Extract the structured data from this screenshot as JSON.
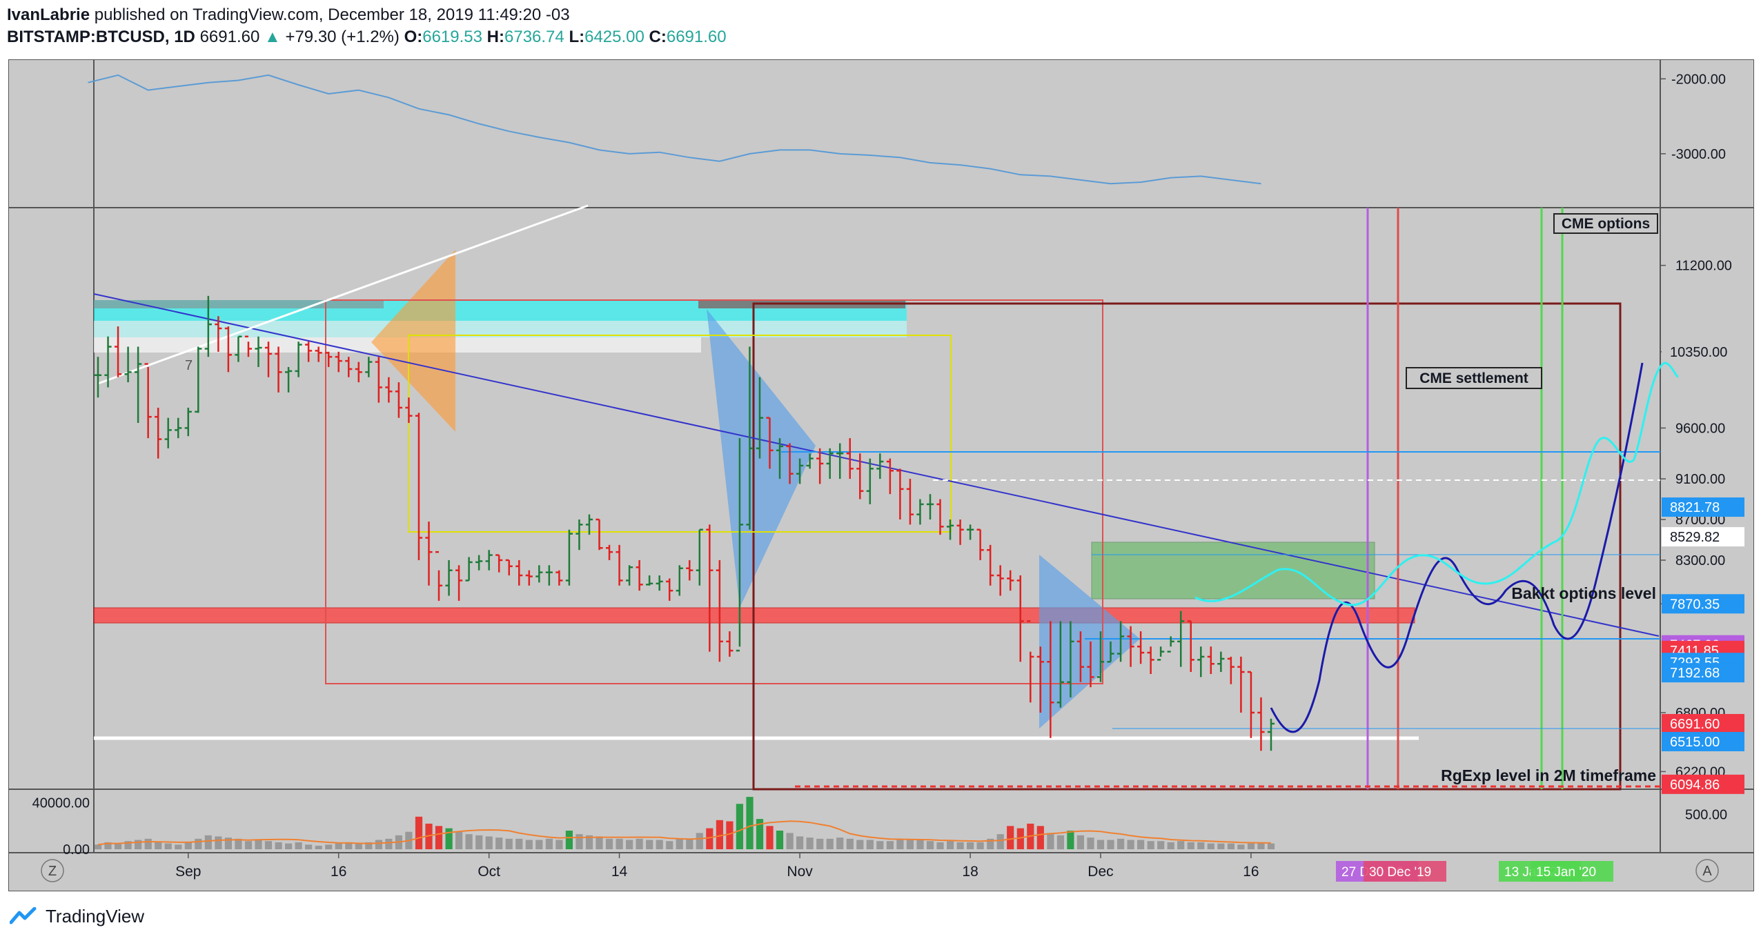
{
  "header": {
    "publisher": "IvanLabrie",
    "published_text": "published on TradingView.com, December 18, 2019 11:49:20 -03",
    "symbol": "BITSTAMP:BTCUSD, 1D",
    "last": "6691.60",
    "change_arrow": "▲",
    "change": "+79.30 (+1.2%)",
    "o_label": "O:",
    "o": "6619.53",
    "h_label": "H:",
    "h": "6736.74",
    "l_label": "L:",
    "l": "6425.00",
    "c_label": "C:",
    "c": "6691.60"
  },
  "footer": {
    "brand": "TradingView",
    "logo_icon": "tradingview-logo-icon"
  },
  "colors": {
    "bg": "#c9c9c9",
    "up": "#26a69a",
    "down": "#ef5350",
    "indicator_line": "#5b9bd5",
    "axis_text": "#131722",
    "blue_label": "#2196f3",
    "red_label": "#f23645"
  },
  "chart_data": [
    {
      "type": "line",
      "pane": "oscillator",
      "y_ticks": [
        "-2000.00",
        "-3000.00"
      ],
      "y_tick_values": [
        -2000,
        -3000
      ],
      "ylim": [
        -1850,
        -3600
      ],
      "x": [
        "Aug 22",
        "Aug 25",
        "Aug 28",
        "Aug 31",
        "Sep 3",
        "Sep 6",
        "Sep 9",
        "Sep 12",
        "Sep 15",
        "Sep 18",
        "Sep 21",
        "Sep 24",
        "Sep 27",
        "Sep 30",
        "Oct 3",
        "Oct 6",
        "Oct 9",
        "Oct 12",
        "Oct 15",
        "Oct 18",
        "Oct 21",
        "Oct 24",
        "Oct 27",
        "Oct 30",
        "Nov 2",
        "Nov 5",
        "Nov 8",
        "Nov 11",
        "Nov 14",
        "Nov 17",
        "Nov 20",
        "Nov 23",
        "Nov 26",
        "Nov 29",
        "Dec 2",
        "Dec 5",
        "Dec 8",
        "Dec 11",
        "Dec 14",
        "Dec 17"
      ],
      "values": [
        -2050,
        -1950,
        -2150,
        -2100,
        -2050,
        -2020,
        -1950,
        -2080,
        -2200,
        -2150,
        -2250,
        -2400,
        -2480,
        -2600,
        -2700,
        -2780,
        -2850,
        -2950,
        -3000,
        -2980,
        -3050,
        -3100,
        -3000,
        -2950,
        -2950,
        -3000,
        -3020,
        -3050,
        -3120,
        -3150,
        -3200,
        -3280,
        -3300,
        -3350,
        -3400,
        -3380,
        -3320,
        -3300,
        -3350,
        -3400
      ]
    },
    {
      "type": "bar",
      "subtype": "ohlc",
      "pane": "price",
      "series": [
        {
          "name": "BITSTAMP:BTCUSD, 1D"
        }
      ],
      "y_ticks": [
        "11200.00",
        "10350.00",
        "9600.00",
        "9100.00",
        "8700.00",
        "8300.00",
        "7870.35",
        "6800.00",
        "6220.00"
      ],
      "price_labels": [
        {
          "text": "10350.00",
          "value": 10350,
          "style": "plain"
        },
        {
          "text": "8821.78",
          "value": 8821.78,
          "style": "blue"
        },
        {
          "text": "8529.82",
          "value": 8529.82,
          "style": "white"
        },
        {
          "text": "7870.35",
          "value": 7870.35,
          "style": "blue"
        },
        {
          "text": "7467.02",
          "value": 7467.02,
          "style": "purple"
        },
        {
          "text": "7411.85",
          "value": 7411.85,
          "style": "red"
        },
        {
          "text": "7293.55",
          "value": 7293.55,
          "style": "blue"
        },
        {
          "text": "7192.68",
          "value": 7192.68,
          "style": "blue"
        },
        {
          "text": "6691.60",
          "value": 6691.6,
          "style": "red"
        },
        {
          "text": "6515.00",
          "value": 6515.0,
          "style": "blue"
        },
        {
          "text": "6094.86",
          "value": 6094.86,
          "style": "red"
        }
      ],
      "ylim": [
        6060,
        11700
      ],
      "x": [
        "Aug 23",
        "Aug 24",
        "Aug 25",
        "Aug 26",
        "Aug 27",
        "Aug 28",
        "Aug 29",
        "Aug 30",
        "Aug 31",
        "Sep 1",
        "Sep 2",
        "Sep 3",
        "Sep 4",
        "Sep 5",
        "Sep 6",
        "Sep 7",
        "Sep 8",
        "Sep 9",
        "Sep 10",
        "Sep 11",
        "Sep 12",
        "Sep 13",
        "Sep 14",
        "Sep 15",
        "Sep 16",
        "Sep 17",
        "Sep 18",
        "Sep 19",
        "Sep 20",
        "Sep 21",
        "Sep 22",
        "Sep 23",
        "Sep 24",
        "Sep 25",
        "Sep 26",
        "Sep 27",
        "Sep 28",
        "Sep 29",
        "Sep 30",
        "Oct 1",
        "Oct 2",
        "Oct 3",
        "Oct 4",
        "Oct 5",
        "Oct 6",
        "Oct 7",
        "Oct 8",
        "Oct 9",
        "Oct 10",
        "Oct 11",
        "Oct 12",
        "Oct 13",
        "Oct 14",
        "Oct 15",
        "Oct 16",
        "Oct 17",
        "Oct 18",
        "Oct 19",
        "Oct 20",
        "Oct 21",
        "Oct 22",
        "Oct 23",
        "Oct 24",
        "Oct 25",
        "Oct 26",
        "Oct 27",
        "Oct 28",
        "Oct 29",
        "Oct 30",
        "Oct 31",
        "Nov 1",
        "Nov 2",
        "Nov 3",
        "Nov 4",
        "Nov 5",
        "Nov 6",
        "Nov 7",
        "Nov 8",
        "Nov 9",
        "Nov 10",
        "Nov 11",
        "Nov 12",
        "Nov 13",
        "Nov 14",
        "Nov 15",
        "Nov 16",
        "Nov 17",
        "Nov 18",
        "Nov 19",
        "Nov 20",
        "Nov 21",
        "Nov 22",
        "Nov 23",
        "Nov 24",
        "Nov 25",
        "Nov 26",
        "Nov 27",
        "Nov 28",
        "Nov 29",
        "Nov 30",
        "Dec 1",
        "Dec 2",
        "Dec 3",
        "Dec 4",
        "Dec 5",
        "Dec 6",
        "Dec 7",
        "Dec 8",
        "Dec 9",
        "Dec 10",
        "Dec 11",
        "Dec 12",
        "Dec 13",
        "Dec 14",
        "Dec 15",
        "Dec 16",
        "Dec 17",
        "Dec 18"
      ],
      "close": [
        10120,
        10400,
        10130,
        10150,
        10230,
        9710,
        9490,
        9580,
        9600,
        9760,
        10380,
        10620,
        10580,
        10320,
        10500,
        10380,
        10390,
        10330,
        10150,
        10160,
        10420,
        10360,
        10340,
        10300,
        10260,
        10180,
        10150,
        10250,
        10000,
        9960,
        9800,
        9720,
        8520,
        8380,
        8050,
        8200,
        8100,
        8280,
        8290,
        8350,
        8300,
        8240,
        8150,
        8140,
        8180,
        8180,
        8100,
        8560,
        8650,
        8700,
        8420,
        8380,
        8100,
        8230,
        8060,
        8070,
        8090,
        8000,
        8220,
        8200,
        8600,
        8200,
        7500,
        7410,
        8650,
        9400,
        9700,
        9380,
        9420,
        9150,
        9230,
        9300,
        9250,
        9350,
        9350,
        9200,
        8980,
        9200,
        9270,
        9180,
        9000,
        8750,
        8850,
        8850,
        8630,
        8640,
        8600,
        8600,
        8400,
        8150,
        8120,
        8100,
        7700,
        7350,
        7300,
        6900,
        7100,
        7500,
        7250,
        7150,
        7300,
        7380,
        7550,
        7450,
        7390,
        7320,
        7400,
        7500,
        7700,
        7320,
        7350,
        7280,
        7330,
        7250,
        7200,
        6800,
        6610,
        6691.6
      ],
      "high": [
        10300,
        10500,
        10600,
        10400,
        10400,
        10200,
        9800,
        9700,
        9700,
        9800,
        10400,
        10900,
        10700,
        10600,
        10500,
        10450,
        10500,
        10450,
        10400,
        10200,
        10450,
        10450,
        10400,
        10350,
        10350,
        10300,
        10250,
        10300,
        10300,
        10100,
        10050,
        9900,
        9750,
        8680,
        8200,
        8300,
        8250,
        8330,
        8350,
        8400,
        8350,
        8300,
        8300,
        8200,
        8250,
        8250,
        8200,
        8600,
        8700,
        8750,
        8700,
        8450,
        8450,
        8250,
        8300,
        8150,
        8150,
        8120,
        8250,
        8300,
        8600,
        8650,
        8300,
        7600,
        9500,
        10400,
        10100,
        9700,
        9500,
        9450,
        9300,
        9350,
        9400,
        9400,
        9450,
        9500,
        9350,
        9300,
        9350,
        9300,
        9200,
        9100,
        8900,
        8950,
        8900,
        8700,
        8700,
        8650,
        8600,
        8450,
        8250,
        8200,
        8150,
        7400,
        7450,
        7700,
        7700,
        7700,
        7600,
        7500,
        7600,
        7500,
        7700,
        7650,
        7600,
        7450,
        7450,
        7550,
        7800,
        7700,
        7450,
        7450,
        7400,
        7350,
        7350,
        7200,
        6950,
        6740
      ],
      "low": [
        9900,
        10000,
        10100,
        10050,
        9650,
        9500,
        9300,
        9400,
        9500,
        9520,
        9750,
        10300,
        10350,
        10150,
        10250,
        10300,
        10200,
        10100,
        9950,
        9950,
        10100,
        10250,
        10250,
        10200,
        10150,
        10100,
        10050,
        10100,
        9850,
        9850,
        9700,
        9650,
        8300,
        8050,
        7900,
        7950,
        7900,
        8100,
        8200,
        8200,
        8180,
        8150,
        8050,
        8050,
        8080,
        8050,
        8050,
        8050,
        8400,
        8550,
        8400,
        8300,
        8050,
        8050,
        8000,
        8050,
        8000,
        7900,
        7950,
        8100,
        8050,
        7400,
        7300,
        7350,
        7450,
        8600,
        9300,
        9200,
        9100,
        9050,
        9050,
        9200,
        9050,
        9100,
        9100,
        9100,
        8900,
        8850,
        9100,
        8950,
        8700,
        8650,
        8650,
        8700,
        8550,
        8500,
        8450,
        8500,
        8300,
        8050,
        7950,
        8000,
        7300,
        6900,
        6800,
        6550,
        6850,
        6950,
        7100,
        7050,
        7100,
        7300,
        7300,
        7250,
        7280,
        7180,
        7350,
        7450,
        7250,
        7200,
        7150,
        7180,
        7200,
        7080,
        6800,
        6550,
        6425,
        6425
      ]
    },
    {
      "type": "bar",
      "pane": "volume",
      "y_ticks": [
        "40000.00",
        "0.00"
      ],
      "right_ticks": [
        "500.00"
      ],
      "ylim": [
        0,
        48000
      ],
      "values": [
        4000,
        6000,
        5000,
        7000,
        8000,
        9000,
        6000,
        5000,
        4000,
        6000,
        9000,
        12000,
        11000,
        10000,
        9000,
        7000,
        8000,
        7000,
        6000,
        5000,
        6000,
        4000,
        3000,
        4000,
        5000,
        6000,
        5000,
        6000,
        8000,
        9000,
        12000,
        15000,
        28000,
        22000,
        20000,
        18000,
        15000,
        13000,
        12000,
        11000,
        10000,
        9000,
        9000,
        8000,
        8000,
        9000,
        8000,
        16000,
        13000,
        12000,
        11000,
        9000,
        9000,
        8000,
        9000,
        8000,
        8000,
        7000,
        9000,
        9000,
        14000,
        18000,
        25000,
        24000,
        39000,
        45000,
        26000,
        20000,
        16000,
        14000,
        11000,
        10000,
        9000,
        9000,
        10000,
        9000,
        8000,
        8000,
        7000,
        7000,
        9000,
        8000,
        8000,
        7000,
        6000,
        7000,
        6000,
        6000,
        6000,
        9000,
        13000,
        20000,
        18000,
        22000,
        20000,
        14000,
        12000,
        16000,
        12000,
        10000,
        8000,
        8000,
        9000,
        8000,
        8000,
        7000,
        7000,
        6000,
        7000,
        6000,
        6000,
        5000,
        5000,
        5000,
        4000,
        5000,
        6000,
        5000
      ]
    }
  ],
  "x_axis": {
    "ticks": [
      "Sep",
      "16",
      "Oct",
      "14",
      "Nov",
      "18",
      "Dec",
      "16"
    ],
    "tick_dates": [
      "Sep 1",
      "Sep 16",
      "Oct 1",
      "Oct 14",
      "Nov 1",
      "Nov 18",
      "Dec 1",
      "Dec 16"
    ],
    "date_badges": [
      {
        "text": "27 Dec '19",
        "color": "#b45ee0"
      },
      {
        "text": "30 Dec '19",
        "color": "#e04a74"
      },
      {
        "text": "13 Jan '20",
        "color": "#52d74f"
      },
      {
        "text": "15 Jan '20",
        "color": "#52d74f"
      }
    ],
    "left_button": "Z",
    "right_button": "A"
  },
  "annotations": {
    "cme_options": "CME options",
    "cme_settlement": "CME settlement",
    "bakkt": "Bakkt options level",
    "rgexp": "RgExp level in 2M timeframe",
    "counter": "7"
  }
}
